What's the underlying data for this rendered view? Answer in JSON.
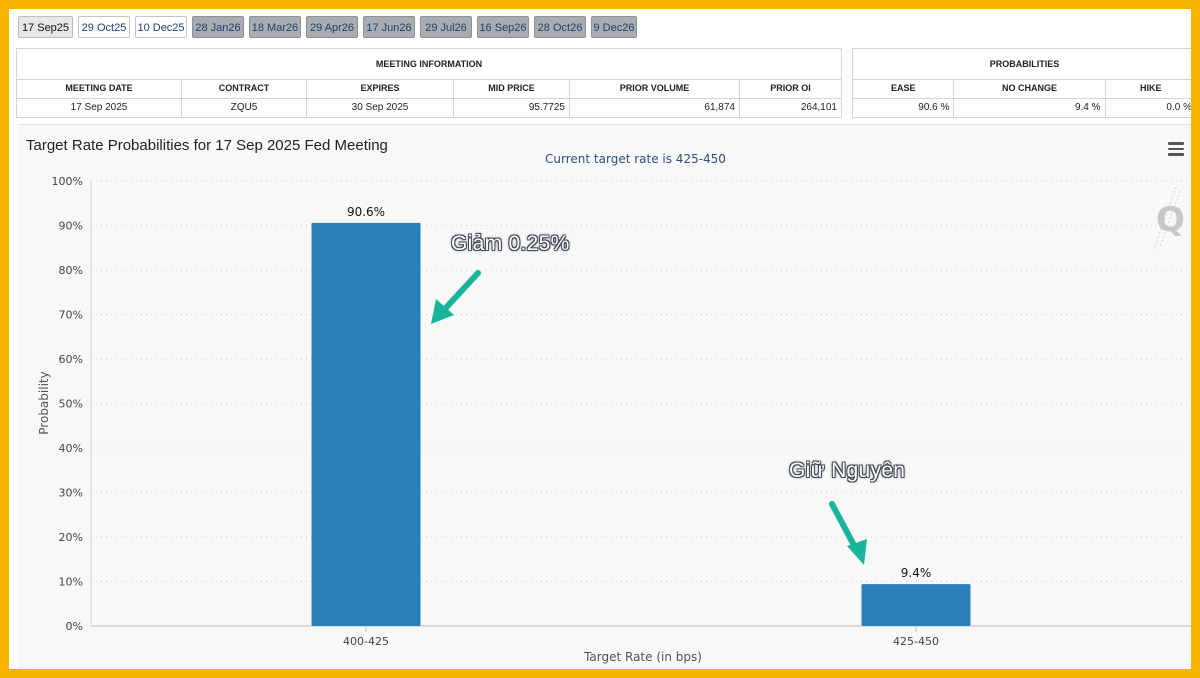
{
  "tabs": [
    {
      "label": "17 Sep25",
      "state": "selected"
    },
    {
      "label": "29 Oct25",
      "state": "normal"
    },
    {
      "label": "10 Dec25",
      "state": "normal"
    },
    {
      "label": "28 Jan26",
      "state": "disabled"
    },
    {
      "label": "18 Mar26",
      "state": "disabled"
    },
    {
      "label": "29 Apr26",
      "state": "disabled"
    },
    {
      "label": "17 Jun26",
      "state": "disabled"
    },
    {
      "label": "29 Jul26",
      "state": "disabled"
    },
    {
      "label": "16 Sep26",
      "state": "disabled"
    },
    {
      "label": "28 Oct26",
      "state": "disabled"
    },
    {
      "label": "9 Dec26",
      "state": "disabled"
    }
  ],
  "meeting_info": {
    "title": "MEETING INFORMATION",
    "headers": [
      "MEETING DATE",
      "CONTRACT",
      "EXPIRES",
      "MID PRICE",
      "PRIOR VOLUME",
      "PRIOR OI"
    ],
    "row": [
      "17 Sep 2025",
      "ZQU5",
      "30 Sep 2025",
      "95.7725",
      "61,874",
      "264,101"
    ]
  },
  "probabilities": {
    "title": "PROBABILITIES",
    "headers": [
      "EASE",
      "NO CHANGE",
      "HIKE"
    ],
    "row": [
      "90.6 %",
      "9.4 %",
      "0.0 %"
    ]
  },
  "annotations": {
    "cut": "Giảm 0.25%",
    "hold": "Giữ Nguyên"
  },
  "colors": {
    "bar": "#2980b9",
    "arrow": "#17b59a"
  },
  "chart_data": {
    "type": "bar",
    "title": "Target Rate Probabilities for 17 Sep 2025 Fed Meeting",
    "subtitle": "Current target rate is 425-450",
    "xlabel": "Target Rate (in bps)",
    "ylabel": "Probability",
    "categories": [
      "400-425",
      "425-450"
    ],
    "values": [
      90.6,
      9.4
    ],
    "data_labels": [
      "90.6%",
      "9.4%"
    ],
    "ylim": [
      0,
      100
    ],
    "yticks": [
      "0%",
      "10%",
      "20%",
      "30%",
      "40%",
      "50%",
      "60%",
      "70%",
      "80%",
      "90%",
      "100%"
    ],
    "grid": true
  }
}
